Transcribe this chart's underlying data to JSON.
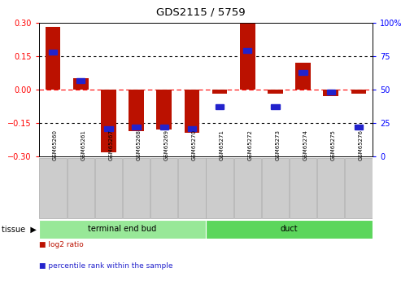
{
  "title": "GDS2115 / 5759",
  "samples": [
    "GSM65260",
    "GSM65261",
    "GSM65267",
    "GSM65268",
    "GSM65269",
    "GSM65270",
    "GSM65271",
    "GSM65272",
    "GSM65273",
    "GSM65274",
    "GSM65275",
    "GSM65276"
  ],
  "log2_ratio": [
    0.28,
    0.05,
    -0.28,
    -0.185,
    -0.18,
    -0.195,
    -0.02,
    0.305,
    -0.02,
    0.12,
    -0.03,
    -0.02
  ],
  "percentile": [
    78,
    57,
    21,
    22,
    22,
    21,
    37,
    79,
    37,
    63,
    48,
    22
  ],
  "tissue_groups": [
    {
      "label": "terminal end bud",
      "start": 0,
      "end": 6,
      "color": "#98E898"
    },
    {
      "label": "duct",
      "start": 6,
      "end": 12,
      "color": "#5CD65C"
    }
  ],
  "bar_color": "#BB1100",
  "percentile_color": "#2222CC",
  "bar_width": 0.55,
  "ylim_left": [
    -0.3,
    0.3
  ],
  "ylim_right": [
    0,
    100
  ],
  "yticks_left": [
    -0.3,
    -0.15,
    0.0,
    0.15,
    0.3
  ],
  "yticks_right": [
    0,
    25,
    50,
    75,
    100
  ],
  "hlines": [
    -0.15,
    0.0,
    0.15
  ],
  "hline_styles": [
    "dotted",
    "dashed",
    "dotted"
  ],
  "hline_colors": [
    "black",
    "red",
    "black"
  ],
  "bg_color": "#FFFFFF",
  "plot_bg_color": "#FFFFFF",
  "legend_items": [
    {
      "label": "log2 ratio",
      "color": "#BB1100"
    },
    {
      "label": "percentile rank within the sample",
      "color": "#2222CC"
    }
  ]
}
